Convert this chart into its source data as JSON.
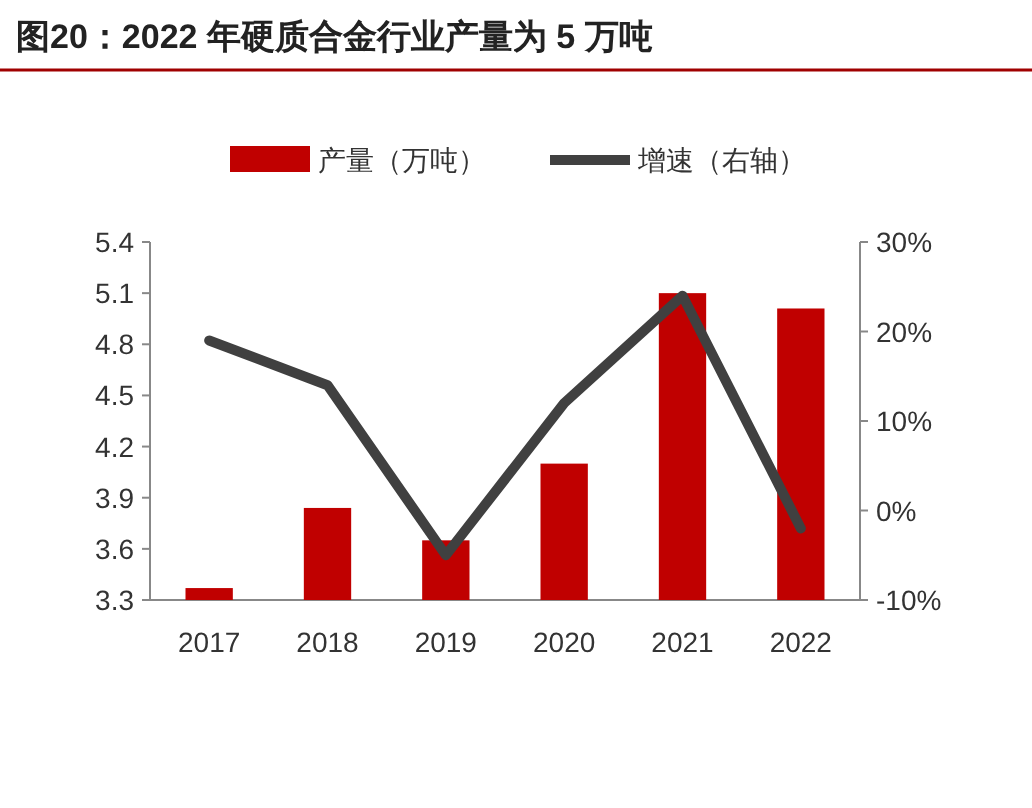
{
  "chart_data": {
    "type": "bar",
    "title": "图20：2022 年硬质合金行业产量为 5 万吨",
    "categories": [
      "2017",
      "2018",
      "2019",
      "2020",
      "2021",
      "2022"
    ],
    "series": [
      {
        "name": "产量（万吨）",
        "color": "#c00000",
        "values": [
          3.37,
          3.84,
          3.65,
          4.1,
          5.1,
          5.01
        ]
      },
      {
        "name": "增速（右轴）",
        "type": "line",
        "axis": "y2",
        "color": "#404040",
        "values": [
          19,
          14,
          -5,
          12,
          24,
          -2
        ]
      }
    ],
    "ylim": [
      3.3,
      5.4
    ],
    "yticks": [
      {
        "value": 3.3,
        "label": "3.3"
      },
      {
        "value": 3.6,
        "label": "3.6"
      },
      {
        "value": 3.9,
        "label": "3.9"
      },
      {
        "value": 4.2,
        "label": "4.2"
      },
      {
        "value": 4.5,
        "label": "4.5"
      },
      {
        "value": 4.8,
        "label": "4.8"
      },
      {
        "value": 5.1,
        "label": "5.1"
      },
      {
        "value": 5.4,
        "label": "5.4"
      }
    ],
    "y2lim": [
      -10,
      30
    ],
    "y2ticks": [
      {
        "value": -10,
        "label": "-10%"
      },
      {
        "value": 0,
        "label": "0%"
      },
      {
        "value": 10,
        "label": "10%"
      },
      {
        "value": 20,
        "label": "20%"
      },
      {
        "value": 30,
        "label": "30%"
      }
    ],
    "legend": "top",
    "grid": false
  }
}
